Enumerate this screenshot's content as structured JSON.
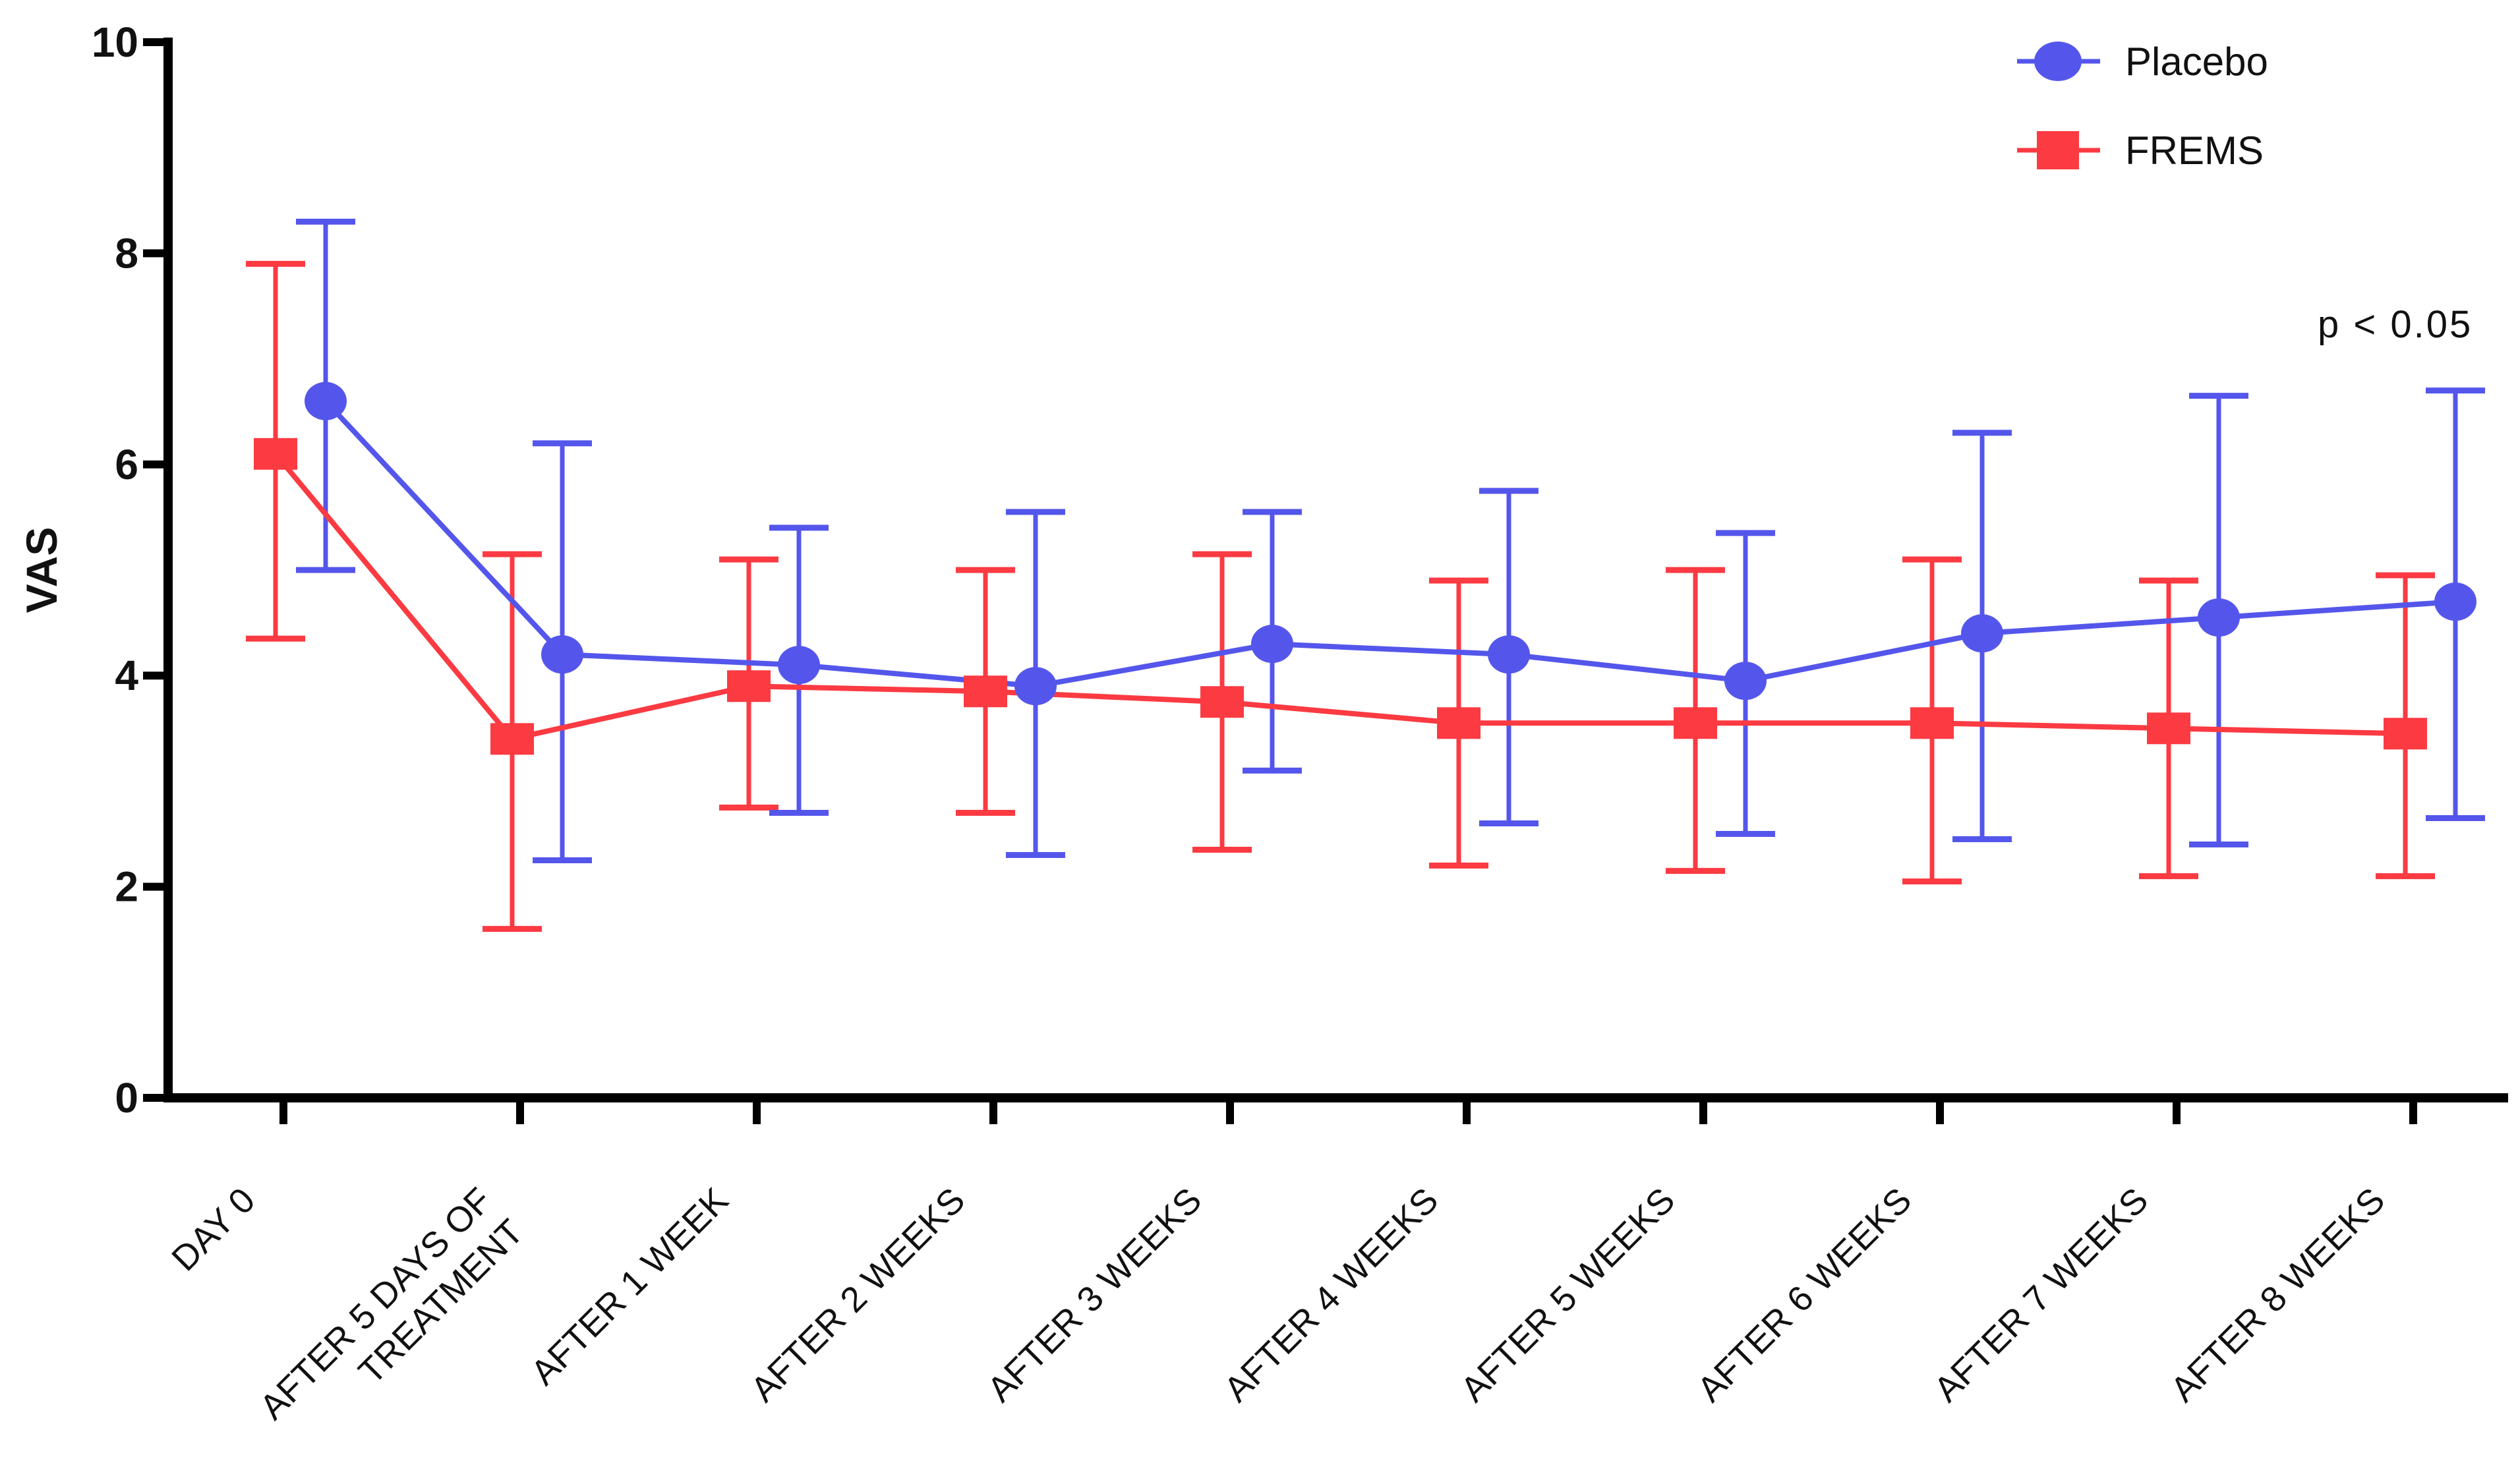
{
  "figure": {
    "ylabel": "VAS",
    "annotation": "p < 0.05",
    "background": "#ffffff",
    "axis_color": "#000000",
    "text_color": "#111111"
  },
  "chart_data": {
    "type": "line",
    "title": "",
    "xlabel": "",
    "ylabel": "VAS",
    "ylim": [
      0,
      10
    ],
    "y_ticks": [
      0,
      2,
      4,
      6,
      8,
      10
    ],
    "grid": false,
    "error_bars": true,
    "legend_position": "top-right",
    "annotation": "p < 0.05",
    "categories": [
      "DAY 0",
      "AFTER 5 DAYS OF TREATMENT",
      "AFTER 1 WEEK",
      "AFTER 2 WEEKS",
      "AFTER 3 WEEKS",
      "AFTER 4 WEEKS",
      "AFTER 5 WEEKS",
      "AFTER 6 WEEKS",
      "AFTER 7 WEEKS",
      "AFTER 8 WEEKS"
    ],
    "category_lines": [
      [
        "DAY 0"
      ],
      [
        "AFTER 5 DAYS OF",
        "TREATMENT"
      ],
      [
        "AFTER 1 WEEK"
      ],
      [
        "AFTER 2 WEEKS"
      ],
      [
        "AFTER 3 WEEKS"
      ],
      [
        "AFTER 4 WEEKS"
      ],
      [
        "AFTER 5 WEEKS"
      ],
      [
        "AFTER 6 WEEKS"
      ],
      [
        "AFTER 7 WEEKS"
      ],
      [
        "AFTER 8 WEEKS"
      ]
    ],
    "series": [
      {
        "name": "FREMS",
        "marker": "square",
        "color": "#FB3A42",
        "values": [
          6.1,
          3.4,
          3.9,
          3.85,
          3.75,
          3.55,
          3.55,
          3.55,
          3.5,
          3.45
        ],
        "err_low": [
          4.35,
          1.6,
          2.75,
          2.7,
          2.35,
          2.2,
          2.15,
          2.05,
          2.1,
          2.1
        ],
        "err_high": [
          7.9,
          5.15,
          5.1,
          5.0,
          5.15,
          4.9,
          5.0,
          5.1,
          4.9,
          4.95
        ]
      },
      {
        "name": "Placebo",
        "marker": "circle",
        "color": "#5456EB",
        "values": [
          6.6,
          4.2,
          4.1,
          3.9,
          4.3,
          4.2,
          3.95,
          4.4,
          4.55,
          4.7
        ],
        "err_low": [
          5.0,
          2.25,
          2.7,
          2.3,
          3.1,
          2.6,
          2.5,
          2.45,
          2.4,
          2.65
        ],
        "err_high": [
          8.3,
          6.2,
          5.4,
          5.55,
          5.55,
          5.75,
          5.35,
          6.3,
          6.65,
          6.7
        ]
      }
    ]
  }
}
